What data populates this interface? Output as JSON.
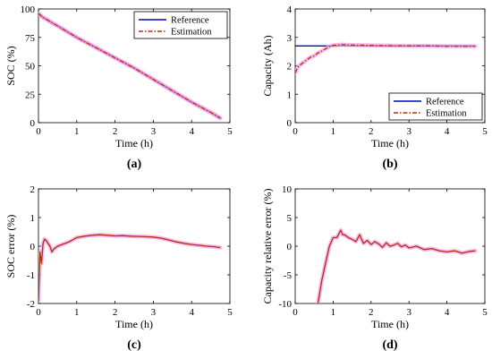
{
  "colors": {
    "reference": "#0000cc",
    "estimation": "#b03010",
    "pink_band": "#f5a0e6"
  },
  "chart_data": [
    {
      "id": "a",
      "type": "line",
      "panel_label": "(a)",
      "xlabel": "Time (h)",
      "ylabel": "SOC (%)",
      "xlim": [
        0,
        5
      ],
      "ylim": [
        0,
        100
      ],
      "xticks": [
        "0",
        "1",
        "2",
        "3",
        "4",
        "5"
      ],
      "yticks": [
        "0",
        "25",
        "50",
        "75",
        "100"
      ],
      "grid": false,
      "legend_position": "top-right",
      "series": [
        {
          "name": "Reference",
          "style": "solid",
          "x": [
            0,
            0.1,
            0.5,
            1,
            1.5,
            2,
            2.5,
            3,
            3.5,
            4,
            4.5,
            4.75
          ],
          "y": [
            96,
            93,
            85,
            75,
            66,
            57,
            48,
            38,
            28,
            18,
            9,
            4
          ]
        },
        {
          "name": "Estimation",
          "style": "dashdot",
          "x": [
            0,
            0.1,
            0.5,
            1,
            1.5,
            2,
            2.5,
            3,
            3.5,
            4,
            4.5,
            4.75
          ],
          "y": [
            96,
            93,
            85,
            75,
            66,
            57,
            48,
            38,
            28,
            18,
            9,
            4
          ]
        }
      ]
    },
    {
      "id": "b",
      "type": "line",
      "panel_label": "(b)",
      "xlabel": "Time (h)",
      "ylabel": "Capacity (Ah)",
      "xlim": [
        0,
        5
      ],
      "ylim": [
        0,
        4
      ],
      "xticks": [
        "0",
        "1",
        "2",
        "3",
        "4",
        "5"
      ],
      "yticks": [
        "0",
        "1",
        "2",
        "3",
        "4"
      ],
      "grid": false,
      "legend_position": "bottom-right",
      "series": [
        {
          "name": "Reference",
          "style": "solid",
          "x": [
            0,
            4.75
          ],
          "y": [
            2.7,
            2.7
          ]
        },
        {
          "name": "Estimation",
          "style": "dashdot",
          "x": [
            0,
            0.05,
            0.1,
            0.2,
            0.3,
            0.4,
            0.5,
            0.6,
            0.7,
            0.8,
            0.9,
            1.0,
            1.1,
            1.2,
            1.5,
            2,
            2.5,
            3,
            3.5,
            4,
            4.5,
            4.75
          ],
          "y": [
            1.75,
            1.9,
            2.0,
            2.1,
            2.2,
            2.3,
            2.35,
            2.45,
            2.52,
            2.6,
            2.68,
            2.72,
            2.73,
            2.75,
            2.73,
            2.72,
            2.71,
            2.7,
            2.7,
            2.69,
            2.69,
            2.69
          ]
        }
      ]
    },
    {
      "id": "c",
      "type": "line",
      "panel_label": "(c)",
      "xlabel": "Time (h)",
      "ylabel": "SOC error (%)",
      "xlim": [
        0,
        5
      ],
      "ylim": [
        -2,
        2
      ],
      "xticks": [
        "0",
        "1",
        "2",
        "3",
        "4",
        "5"
      ],
      "yticks": [
        "-2",
        "-1",
        "0",
        "1",
        "2"
      ],
      "grid": false,
      "series": [
        {
          "style": "solid",
          "x": [
            0,
            0.04,
            0.08,
            0.12,
            0.16,
            0.2,
            0.25,
            0.3,
            0.35,
            0.4,
            0.45,
            0.5,
            0.6,
            0.8,
            1.0,
            1.2,
            1.4,
            1.6,
            1.8,
            2.0,
            2.2,
            2.4,
            2.6,
            2.8,
            3.0,
            3.2,
            3.4,
            3.6,
            3.8,
            4.0,
            4.2,
            4.4,
            4.6,
            4.75
          ],
          "y": [
            -1.9,
            -0.2,
            -0.6,
            0.1,
            0.25,
            0.2,
            0.1,
            0.0,
            -0.2,
            -0.1,
            -0.05,
            0.0,
            0.05,
            0.15,
            0.3,
            0.35,
            0.38,
            0.4,
            0.38,
            0.36,
            0.37,
            0.35,
            0.34,
            0.33,
            0.32,
            0.28,
            0.22,
            0.15,
            0.1,
            0.06,
            0.03,
            0.0,
            -0.02,
            -0.05
          ]
        }
      ]
    },
    {
      "id": "d",
      "type": "line",
      "panel_label": "(d)",
      "xlabel": "Time (h)",
      "ylabel": "Capacity relative error (%)",
      "xlim": [
        0,
        5
      ],
      "ylim": [
        -10,
        10
      ],
      "xticks": [
        "0",
        "1",
        "2",
        "3",
        "4",
        "5"
      ],
      "yticks": [
        "-10",
        "-5",
        "0",
        "5",
        "10"
      ],
      "grid": false,
      "series": [
        {
          "style": "solid",
          "x": [
            0.6,
            0.7,
            0.8,
            0.9,
            1.0,
            1.1,
            1.2,
            1.25,
            1.3,
            1.4,
            1.5,
            1.6,
            1.7,
            1.75,
            1.8,
            1.9,
            2.0,
            2.1,
            2.2,
            2.3,
            2.4,
            2.5,
            2.6,
            2.7,
            2.8,
            2.9,
            3.0,
            3.2,
            3.4,
            3.6,
            3.8,
            4.0,
            4.2,
            4.4,
            4.6,
            4.75
          ],
          "y": [
            -10,
            -6,
            -3,
            0,
            1.5,
            1.5,
            2.8,
            2.0,
            2.0,
            1.5,
            1.2,
            0.8,
            2.0,
            1.2,
            0.5,
            1.0,
            0.3,
            0.8,
            0.4,
            -0.2,
            0.6,
            0.0,
            0.2,
            0.5,
            -0.1,
            0.2,
            -0.3,
            0.0,
            -0.6,
            -0.4,
            -0.8,
            -1.0,
            -0.8,
            -1.2,
            -0.9,
            -0.8
          ]
        }
      ]
    }
  ]
}
